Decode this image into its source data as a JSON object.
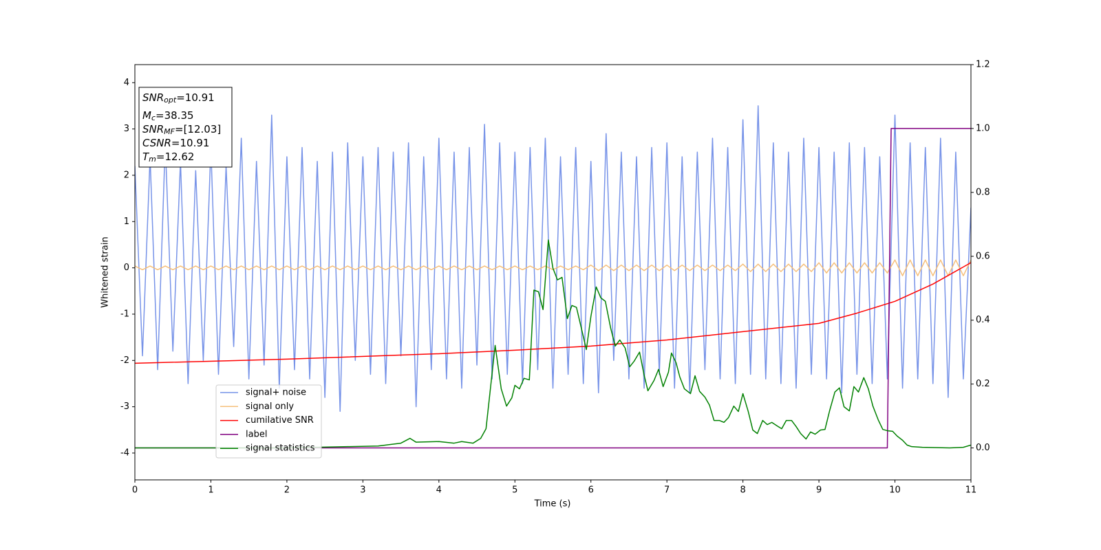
{
  "chart_data": {
    "type": "line",
    "xlabel": "Time (s)",
    "ylabel": "Whitened strain",
    "xlim": [
      0,
      11
    ],
    "xticks": [
      0,
      1,
      2,
      3,
      4,
      5,
      6,
      7,
      8,
      9,
      10,
      11
    ],
    "ylim": [
      -4.58,
      4.39
    ],
    "yticks": [
      -4,
      -3,
      -2,
      -1,
      0,
      1,
      2,
      3,
      4
    ],
    "y2lim": [
      -0.1,
      1.2
    ],
    "y2ticks": [
      {
        "value": 0,
        "label": "0.0"
      },
      0.2,
      0.4,
      0.6,
      0.8,
      {
        "value": 1,
        "label": "1.0"
      },
      1.2
    ],
    "annotations": [
      {
        "symbol": "SNR",
        "subscript": "opt",
        "text": "=10.91"
      },
      {
        "symbol": "M",
        "subscript": "c",
        "text": "=38.35"
      },
      {
        "symbol": "SNR",
        "subscript": "MF",
        "text": "=[12.03]"
      },
      {
        "symbol": "CSNR",
        "text": "=10.91"
      },
      {
        "symbol": "T",
        "subscript": "m",
        "text": "=12.62"
      }
    ],
    "series": [
      {
        "name": "signal+ noise",
        "color": "#7793e8",
        "x": [
          0,
          0.1,
          0.2,
          0.3,
          0.4,
          0.5,
          0.6,
          0.7,
          0.8,
          0.9,
          1,
          1.1,
          1.2,
          1.3,
          1.4,
          1.5,
          1.6,
          1.7,
          1.8,
          1.9,
          2,
          2.1,
          2.2,
          2.3,
          2.4,
          2.5,
          2.6,
          2.7,
          2.8,
          2.9,
          3,
          3.1,
          3.2,
          3.3,
          3.4,
          3.5,
          3.6,
          3.7,
          3.8,
          3.9,
          4,
          4.1,
          4.2,
          4.3,
          4.4,
          4.5,
          4.6,
          4.7,
          4.8,
          4.9,
          5,
          5.1,
          5.2,
          5.3,
          5.4,
          5.5,
          5.6,
          5.7,
          5.8,
          5.9,
          6,
          6.1,
          6.2,
          6.3,
          6.4,
          6.5,
          6.6,
          6.7,
          6.8,
          6.9,
          7,
          7.1,
          7.2,
          7.3,
          7.4,
          7.5,
          7.6,
          7.7,
          7.8,
          7.9,
          8,
          8.1,
          8.2,
          8.3,
          8.4,
          8.5,
          8.6,
          8.7,
          8.8,
          8.9,
          9,
          9.1,
          9.2,
          9.3,
          9.4,
          9.5,
          9.6,
          9.7,
          9.8,
          9.9,
          10,
          10.1,
          10.2,
          10.3,
          10.4,
          10.5,
          10.6,
          10.7,
          10.8,
          10.9,
          11
        ],
        "values": [
          2.2,
          -1.9,
          2.4,
          -2.2,
          2.7,
          -1.8,
          2.3,
          -2.5,
          2.1,
          -2.0,
          2.6,
          -2.3,
          2.2,
          -1.7,
          2.8,
          -2.4,
          2.3,
          -2.1,
          3.3,
          -2.6,
          2.4,
          -2.2,
          2.6,
          -2.4,
          2.3,
          -2.8,
          2.5,
          -3.1,
          2.7,
          -2.0,
          2.4,
          -2.3,
          2.6,
          -2.5,
          2.5,
          -1.9,
          2.7,
          -3.0,
          2.4,
          -2.2,
          2.8,
          -2.4,
          2.5,
          -2.6,
          2.6,
          -2.1,
          3.1,
          -2.4,
          2.7,
          -2.3,
          2.5,
          -2.5,
          2.6,
          -2.2,
          2.8,
          -2.6,
          2.4,
          -2.3,
          2.6,
          -2.5,
          2.3,
          -2.7,
          2.9,
          -2.0,
          2.5,
          -2.4,
          2.4,
          -2.6,
          2.6,
          -2.3,
          2.7,
          -2.6,
          2.4,
          -2.7,
          2.5,
          -2.2,
          2.8,
          -2.4,
          2.6,
          -2.5,
          3.2,
          -2.3,
          3.5,
          -2.4,
          2.7,
          -2.5,
          2.5,
          -2.6,
          2.8,
          -2.3,
          2.6,
          -2.4,
          2.5,
          -2.7,
          2.7,
          -2.3,
          2.6,
          -2.5,
          2.4,
          -2.4,
          3.3,
          -2.6,
          2.7,
          -2.4,
          2.6,
          -2.5,
          2.8,
          -2.8,
          2.5,
          -2.4,
          1.3
        ]
      },
      {
        "name": "signal only",
        "color": "#f6bf7a",
        "x": [
          0,
          0.1,
          0.2,
          0.3,
          0.4,
          0.5,
          0.6,
          0.7,
          0.8,
          0.9,
          1,
          1.1,
          1.2,
          1.3,
          1.4,
          1.5,
          1.6,
          1.7,
          1.8,
          1.9,
          2,
          2.1,
          2.2,
          2.3,
          2.4,
          2.5,
          2.6,
          2.7,
          2.8,
          2.9,
          3,
          3.1,
          3.2,
          3.3,
          3.4,
          3.5,
          3.6,
          3.7,
          3.8,
          3.9,
          4,
          4.1,
          4.2,
          4.3,
          4.4,
          4.5,
          4.6,
          4.7,
          4.8,
          4.9,
          5,
          5.1,
          5.2,
          5.3,
          5.4,
          5.5,
          5.6,
          5.7,
          5.8,
          5.9,
          6,
          6.1,
          6.2,
          6.3,
          6.4,
          6.5,
          6.6,
          6.7,
          6.8,
          6.9,
          7,
          7.1,
          7.2,
          7.3,
          7.4,
          7.5,
          7.6,
          7.7,
          7.8,
          7.9,
          8,
          8.1,
          8.2,
          8.3,
          8.4,
          8.5,
          8.6,
          8.7,
          8.8,
          8.9,
          9,
          9.1,
          9.2,
          9.3,
          9.4,
          9.5,
          9.6,
          9.7,
          9.8,
          9.9,
          10,
          10.1,
          10.2,
          10.3,
          10.4,
          10.5,
          10.6,
          10.7,
          10.8,
          10.9,
          11
        ],
        "values": [
          0.04,
          -0.04,
          0.04,
          -0.04,
          0.04,
          -0.04,
          0.04,
          -0.04,
          0.04,
          -0.04,
          0.04,
          -0.04,
          0.04,
          -0.04,
          0.04,
          -0.04,
          0.04,
          -0.04,
          0.04,
          -0.04,
          0.04,
          -0.04,
          0.04,
          -0.04,
          0.04,
          -0.04,
          0.04,
          -0.04,
          0.04,
          -0.04,
          0.04,
          -0.04,
          0.04,
          -0.04,
          0.04,
          -0.04,
          0.04,
          -0.04,
          0.04,
          -0.04,
          0.04,
          -0.04,
          0.04,
          -0.04,
          0.04,
          -0.04,
          0.04,
          -0.04,
          0.04,
          -0.04,
          0.04,
          -0.04,
          0.04,
          -0.04,
          0.04,
          -0.04,
          0.04,
          -0.04,
          0.04,
          -0.04,
          0.06,
          -0.06,
          0.06,
          -0.06,
          0.06,
          -0.06,
          0.06,
          -0.06,
          0.06,
          -0.06,
          0.06,
          -0.06,
          0.06,
          -0.06,
          0.06,
          -0.06,
          0.06,
          -0.06,
          0.06,
          -0.06,
          0.08,
          -0.08,
          0.08,
          -0.08,
          0.08,
          -0.08,
          0.08,
          -0.08,
          0.08,
          -0.08,
          0.11,
          -0.11,
          0.11,
          -0.11,
          0.11,
          -0.11,
          0.11,
          -0.11,
          0.11,
          -0.11,
          0.17,
          -0.17,
          0.17,
          -0.17,
          0.17,
          -0.17,
          0.17,
          -0.17,
          0.17,
          -0.17,
          0.17
        ]
      },
      {
        "name": "cumilative SNR",
        "color": "#ff0000",
        "axis": "y2",
        "x": [
          0,
          2,
          4,
          5,
          6,
          7,
          8,
          9,
          9.5,
          10,
          10.5,
          11
        ],
        "values": [
          0.265,
          0.278,
          0.295,
          0.306,
          0.319,
          0.338,
          0.364,
          0.39,
          0.422,
          0.459,
          0.513,
          0.58
        ]
      },
      {
        "name": "label",
        "color": "#800080",
        "axis": "y2",
        "x": [
          0,
          9.9,
          9.95,
          11
        ],
        "values": [
          0,
          0,
          1,
          1
        ]
      },
      {
        "name": "signal statistics",
        "color": "#008000",
        "axis": "y2",
        "x": [
          0,
          1,
          2,
          2.8,
          3.2,
          3.5,
          3.62,
          3.7,
          4.0,
          4.2,
          4.3,
          4.45,
          4.55,
          4.62,
          4.74,
          4.82,
          4.89,
          4.96,
          5.0,
          5.06,
          5.12,
          5.19,
          5.25,
          5.31,
          5.37,
          5.44,
          5.5,
          5.56,
          5.62,
          5.69,
          5.75,
          5.81,
          5.88,
          5.94,
          6.0,
          6.07,
          6.13,
          6.19,
          6.26,
          6.32,
          6.38,
          6.45,
          6.51,
          6.57,
          6.64,
          6.7,
          6.75,
          6.83,
          6.89,
          6.95,
          7.02,
          7.06,
          7.12,
          7.17,
          7.23,
          7.31,
          7.37,
          7.43,
          7.5,
          7.56,
          7.62,
          7.69,
          7.75,
          7.81,
          7.88,
          7.94,
          8.0,
          8.07,
          8.13,
          8.19,
          8.26,
          8.32,
          8.38,
          8.45,
          8.51,
          8.57,
          8.64,
          8.7,
          8.76,
          8.83,
          8.89,
          8.95,
          9.02,
          9.08,
          9.14,
          9.21,
          9.27,
          9.33,
          9.4,
          9.46,
          9.52,
          9.59,
          9.65,
          9.71,
          9.78,
          9.84,
          9.9,
          9.97,
          10.03,
          10.1,
          10.16,
          10.22,
          10.36,
          10.72,
          10.9,
          11
        ],
        "values": [
          0,
          0,
          0,
          0.004,
          0.006,
          0.015,
          0.03,
          0.018,
          0.02,
          0.015,
          0.02,
          0.015,
          0.03,
          0.06,
          0.321,
          0.185,
          0.131,
          0.157,
          0.196,
          0.185,
          0.218,
          0.213,
          0.494,
          0.489,
          0.433,
          0.651,
          0.563,
          0.526,
          0.534,
          0.405,
          0.446,
          0.44,
          0.369,
          0.308,
          0.412,
          0.504,
          0.47,
          0.459,
          0.375,
          0.319,
          0.338,
          0.313,
          0.254,
          0.272,
          0.3,
          0.228,
          0.179,
          0.211,
          0.246,
          0.192,
          0.237,
          0.297,
          0.267,
          0.222,
          0.185,
          0.17,
          0.226,
          0.177,
          0.159,
          0.134,
          0.086,
          0.086,
          0.08,
          0.095,
          0.131,
          0.114,
          0.17,
          0.114,
          0.056,
          0.045,
          0.086,
          0.073,
          0.08,
          0.069,
          0.06,
          0.086,
          0.086,
          0.067,
          0.045,
          0.028,
          0.05,
          0.043,
          0.056,
          0.058,
          0.116,
          0.175,
          0.188,
          0.129,
          0.116,
          0.192,
          0.175,
          0.22,
          0.185,
          0.131,
          0.088,
          0.058,
          0.054,
          0.052,
          0.037,
          0.024,
          0.009,
          0.004,
          0.002,
          0,
          0.002,
          0.009
        ]
      }
    ]
  }
}
